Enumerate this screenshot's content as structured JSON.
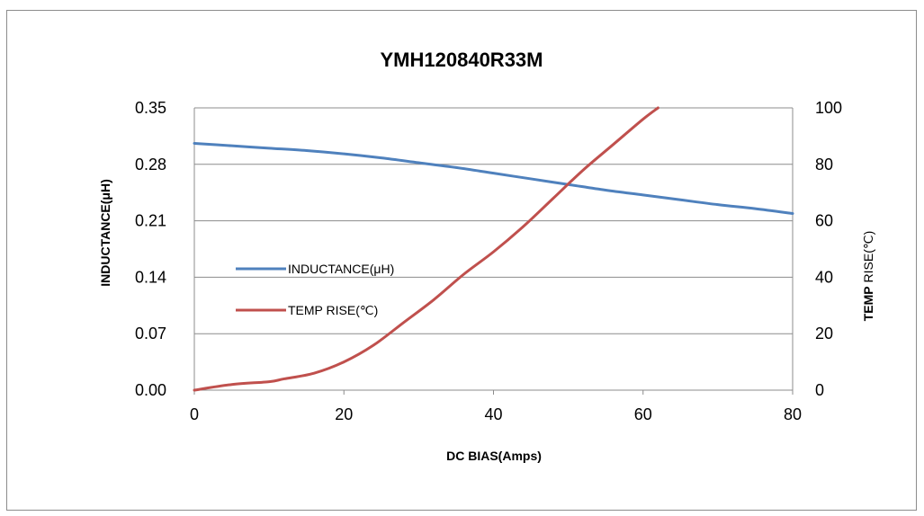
{
  "chart_data": {
    "type": "line",
    "title": "YMH120840R33M",
    "xlabel": "DC BIAS(Amps)",
    "ylabel": "INDUCTANCE(μH)",
    "y2label_bold": "TEMP",
    "y2label_rest": " RISE(℃)",
    "xlim": [
      0,
      80
    ],
    "ylim": [
      0,
      0.35
    ],
    "y2lim": [
      0,
      100
    ],
    "x_ticks": [
      "0",
      "20",
      "40",
      "60",
      "80"
    ],
    "y_ticks": [
      "0.00",
      "0.07",
      "0.14",
      "0.21",
      "0.28",
      "0.35"
    ],
    "y2_ticks": [
      "0",
      "20",
      "40",
      "60",
      "80",
      "100"
    ],
    "grid": true,
    "legend_position": "center-left",
    "series": [
      {
        "name": "INDUCTANCE(μH)",
        "axis": "left",
        "color": "#4f81bd",
        "x": [
          0,
          5,
          10,
          15,
          20,
          25,
          30,
          35,
          40,
          45,
          50,
          55,
          60,
          65,
          70,
          75,
          80
        ],
        "y": [
          0.306,
          0.303,
          0.3,
          0.297,
          0.293,
          0.288,
          0.282,
          0.276,
          0.269,
          0.262,
          0.255,
          0.248,
          0.242,
          0.236,
          0.23,
          0.225,
          0.219
        ]
      },
      {
        "name": "TEMP RISE(℃)",
        "axis": "right",
        "color": "#c0504d",
        "x": [
          0,
          5,
          10,
          12,
          16,
          20,
          24,
          28,
          32,
          36,
          40,
          44,
          48,
          52,
          56,
          60,
          62
        ],
        "y": [
          0,
          2,
          3,
          4,
          6,
          10,
          16,
          24,
          32,
          41,
          49,
          58,
          68,
          78,
          87,
          96,
          100
        ]
      }
    ]
  }
}
